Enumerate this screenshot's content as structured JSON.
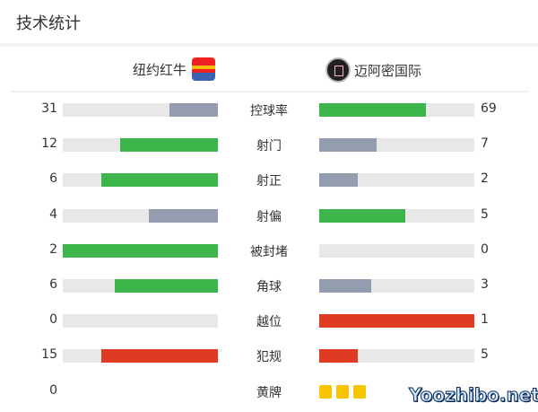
{
  "title": "技术统计",
  "home": {
    "name": "纽约红牛",
    "logo": "New York Red Bulls crest"
  },
  "away": {
    "name": "迈阿密国际",
    "logo": "Inter Miami crest"
  },
  "colors": {
    "higher": "#3cb54a",
    "lower": "#939daf",
    "foul": "#e03a22",
    "track": "#e8e8e8",
    "card": "#f7c600"
  },
  "stats": [
    {
      "name": "控球率",
      "home": 31,
      "away": 69,
      "type": "normal"
    },
    {
      "name": "射门",
      "home": 12,
      "away": 7,
      "type": "normal"
    },
    {
      "name": "射正",
      "home": 6,
      "away": 2,
      "type": "normal"
    },
    {
      "name": "射偏",
      "home": 4,
      "away": 5,
      "type": "normal"
    },
    {
      "name": "被封堵",
      "home": 2,
      "away": 0,
      "type": "normal"
    },
    {
      "name": "角球",
      "home": 6,
      "away": 3,
      "type": "normal"
    },
    {
      "name": "越位",
      "home": 0,
      "away": 1,
      "type": "foul"
    },
    {
      "name": "犯规",
      "home": 15,
      "away": 5,
      "type": "foul"
    },
    {
      "name": "黄牌",
      "home": 0,
      "away": 3,
      "type": "cards"
    }
  ],
  "watermark": "Yoozhibo.net"
}
